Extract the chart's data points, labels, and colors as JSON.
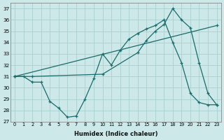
{
  "xlabel": "Humidex (Indice chaleur)",
  "xlim": [
    -0.5,
    23.5
  ],
  "ylim": [
    27,
    37.5
  ],
  "yticks": [
    27,
    28,
    29,
    30,
    31,
    32,
    33,
    34,
    35,
    36,
    37
  ],
  "xticks": [
    0,
    1,
    2,
    3,
    4,
    5,
    6,
    7,
    8,
    9,
    10,
    11,
    12,
    13,
    14,
    15,
    16,
    17,
    18,
    19,
    20,
    21,
    22,
    23
  ],
  "bg_color": "#cce8e8",
  "grid_color": "#aacfcf",
  "line_color": "#1a6b6b",
  "line1_x": [
    0,
    1,
    2,
    3,
    4,
    5,
    6,
    7,
    8,
    9,
    10,
    11,
    12,
    13,
    14,
    15,
    16,
    17,
    18,
    19,
    20,
    21,
    22,
    23
  ],
  "line1_y": [
    31.0,
    31.0,
    30.5,
    30.5,
    28.8,
    28.2,
    27.4,
    27.5,
    29.0,
    30.8,
    33.0,
    32.0,
    33.3,
    34.3,
    34.8,
    35.2,
    35.5,
    36.0,
    34.0,
    32.2,
    29.5,
    28.7,
    28.5,
    28.5
  ],
  "line2_x": [
    0,
    2,
    10,
    14,
    15,
    16,
    17,
    18,
    19,
    20,
    21,
    22,
    23
  ],
  "line2_y": [
    31.0,
    31.0,
    31.2,
    33.1,
    34.2,
    35.0,
    35.6,
    37.0,
    36.0,
    35.3,
    32.2,
    29.5,
    28.5
  ],
  "line3_x": [
    0,
    23
  ],
  "line3_y": [
    31.0,
    35.5
  ]
}
